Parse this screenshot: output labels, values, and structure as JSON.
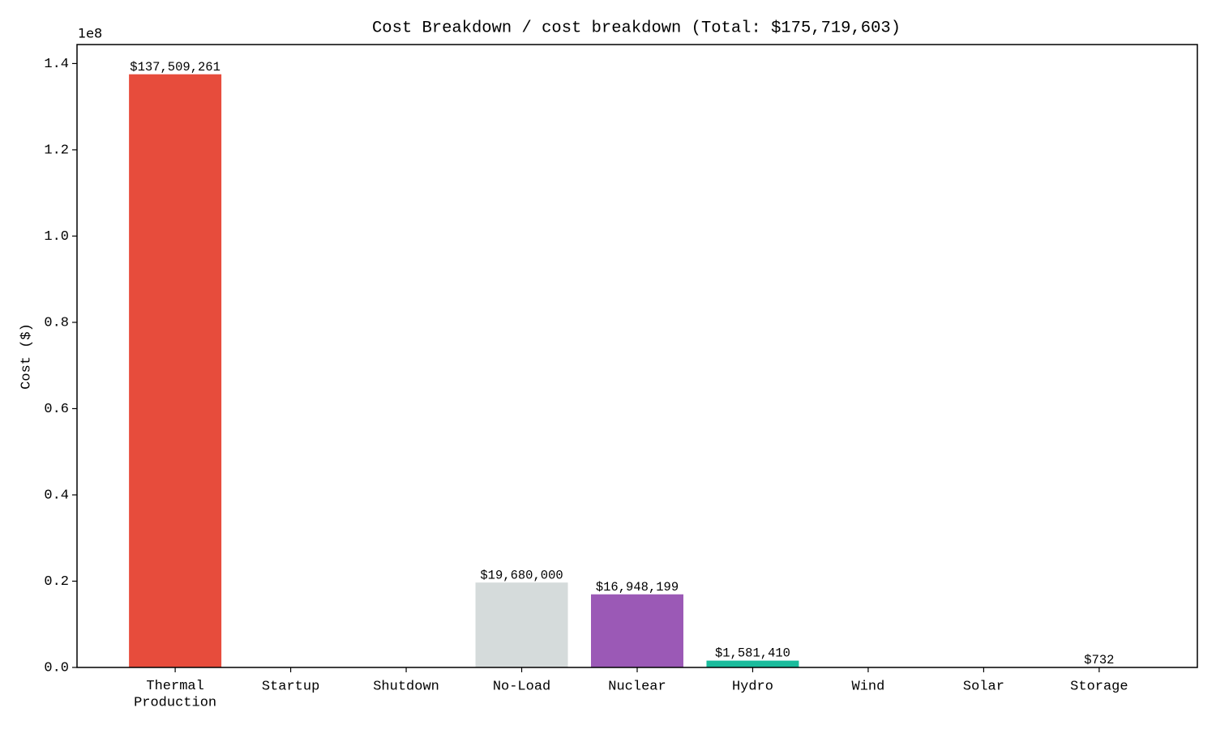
{
  "chart_data": {
    "type": "bar",
    "title": "Cost Breakdown / cost breakdown (Total: $175,719,603)",
    "y_label": "Cost ($)",
    "y_offset_label": "1e8",
    "categories": [
      "Thermal\nProduction",
      "Startup",
      "Shutdown",
      "No-Load",
      "Nuclear",
      "Hydro",
      "Wind",
      "Solar",
      "Storage"
    ],
    "values": [
      137509261,
      0,
      0,
      19680000,
      16948199,
      1581410,
      0,
      0,
      732
    ],
    "value_labels": [
      "$137,509,261",
      null,
      null,
      "$19,680,000",
      "$16,948,199",
      "$1,581,410",
      null,
      null,
      "$732"
    ],
    "colors": [
      "#e74c3c",
      "#f39c12",
      "#e67e22",
      "#d5dbdb",
      "#9b59b6",
      "#1abc9c",
      "#3498db",
      "#f1c40f",
      "#2ecc71"
    ],
    "ylim": [
      0,
      144400000
    ],
    "yticks": [
      {
        "value": 0,
        "label": "0.0"
      },
      {
        "value": 20000000,
        "label": "0.2"
      },
      {
        "value": 40000000,
        "label": "0.4"
      },
      {
        "value": 60000000,
        "label": "0.6"
      },
      {
        "value": 80000000,
        "label": "0.8"
      },
      {
        "value": 100000000,
        "label": "1.0"
      },
      {
        "value": 120000000,
        "label": "1.2"
      },
      {
        "value": 140000000,
        "label": "1.4"
      }
    ],
    "grid": false
  }
}
